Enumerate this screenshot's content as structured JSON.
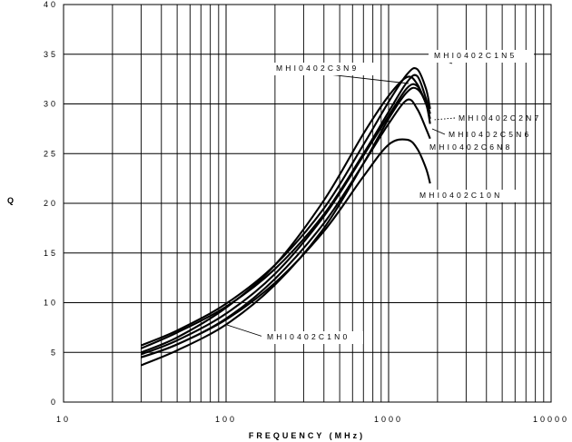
{
  "chart_data": {
    "type": "line",
    "title": "",
    "xlabel": "FREQUENCY (MHz)",
    "ylabel": "Q",
    "x_scale": "log",
    "xlim": [
      10,
      10000
    ],
    "ylim": [
      0,
      40
    ],
    "grid": true,
    "x_ticks": [
      "10",
      "100",
      "1000",
      "10000"
    ],
    "y_ticks": [
      "0",
      "5",
      "10",
      "15",
      "20",
      "25",
      "30",
      "35",
      "40"
    ],
    "series": [
      {
        "name": "MHI0402C1N5",
        "x": [
          30,
          50,
          100,
          200,
          400,
          700,
          1000,
          1300,
          1500,
          1700,
          1800
        ],
        "y": [
          5.7,
          7.2,
          9.9,
          13.8,
          19.5,
          25.9,
          30.2,
          33.0,
          33.5,
          31.5,
          29.5
        ]
      },
      {
        "name": "MHI0402C3N9",
        "x": [
          30,
          50,
          100,
          200,
          400,
          700,
          1000,
          1300,
          1500,
          1700,
          1800
        ],
        "y": [
          5.0,
          6.5,
          9.5,
          13.8,
          20.3,
          27.0,
          30.8,
          32.7,
          32.0,
          30.0,
          29.0
        ]
      },
      {
        "name": "MHI0402C2N7",
        "x": [
          30,
          50,
          100,
          200,
          400,
          700,
          1000,
          1300,
          1500,
          1700,
          1800
        ],
        "y": [
          5.4,
          7.0,
          9.6,
          13.4,
          18.9,
          25.0,
          29.2,
          32.2,
          32.8,
          30.5,
          29.0
        ]
      },
      {
        "name": "MHI0402C5N6",
        "x": [
          30,
          50,
          100,
          200,
          400,
          700,
          1000,
          1300,
          1500,
          1700,
          1800
        ],
        "y": [
          4.8,
          6.2,
          8.9,
          12.9,
          18.7,
          24.8,
          28.8,
          31.6,
          31.8,
          30.0,
          28.5
        ]
      },
      {
        "name": "MHI0402C6N8",
        "x": [
          30,
          50,
          100,
          200,
          400,
          700,
          1000,
          1300,
          1500,
          1700,
          1800
        ],
        "y": [
          4.5,
          5.8,
          8.4,
          12.4,
          18.0,
          24.0,
          28.0,
          30.4,
          29.5,
          27.5,
          26.5
        ]
      },
      {
        "name": "MHI0402C10N",
        "x": [
          30,
          50,
          100,
          200,
          400,
          700,
          1000,
          1300,
          1500,
          1700,
          1800
        ],
        "y": [
          4.5,
          5.8,
          8.3,
          12.0,
          17.2,
          22.7,
          25.9,
          26.4,
          25.5,
          23.5,
          22.0
        ]
      },
      {
        "name": "MHI0402C1N0",
        "x": [
          30,
          50,
          100,
          200,
          400,
          700,
          1000,
          1300,
          1500,
          1700,
          1800
        ],
        "y": [
          3.7,
          5.2,
          7.8,
          11.8,
          17.5,
          24.0,
          28.5,
          31.2,
          31.5,
          30.0,
          28.0
        ]
      }
    ],
    "labels": [
      {
        "text": "MHI0402C1N5",
        "series": "MHI0402C1N5"
      },
      {
        "text": "MHI0402C3N9",
        "series": "MHI0402C3N9"
      },
      {
        "text": "MHI0402C2N7",
        "series": "MHI0402C2N7"
      },
      {
        "text": "MHI0402C5N6",
        "series": "MHI0402C5N6"
      },
      {
        "text": "MHI0402C6N8",
        "series": "MHI0402C6N8"
      },
      {
        "text": "MHI0402C10N",
        "series": "MHI0402C10N"
      },
      {
        "text": "MHI0402C1N0",
        "series": "MHI0402C1N0"
      }
    ]
  }
}
